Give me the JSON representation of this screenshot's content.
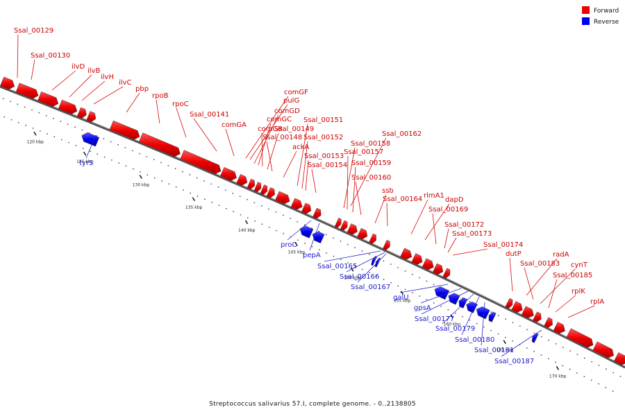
{
  "legend": [
    {
      "label": "Forward",
      "color": "#ee0000"
    },
    {
      "label": "Reverse",
      "color": "#0000ee"
    }
  ],
  "caption": "Streptococcus salivarius 57.I, complete genome. - 0..2138805",
  "ticks": [
    "120 kbp",
    "125 kbp",
    "130 kbp",
    "135 kbp",
    "140 kbp",
    "145 kbp",
    "150 kbp",
    "155 kbp",
    "160 kbp",
    "165 kbp",
    "170 kbp"
  ],
  "forward_labels": [
    "Ssal_00129",
    "Ssal_00130",
    "ilvD",
    "ilvB",
    "ilvH",
    "ilvC",
    "pbp",
    "rpoB",
    "rpoC",
    "Ssal_00141",
    "comGA",
    "comGF",
    "pulG",
    "comGD",
    "comGC",
    "comGB",
    "Ssal_00149",
    "Ssal_00148",
    "ackA",
    "Ssal_00151",
    "Ssal_00152",
    "Ssal_00153",
    "Ssal_00154",
    "Ssal_00162",
    "Ssal_00158",
    "Ssal_00157",
    "Ssal_00159",
    "Ssal_00160",
    "ssb",
    "Ssal_00164",
    "rlmA1",
    "dapD",
    "Ssal_00169",
    "Ssal_00172",
    "Ssal_00173",
    "Ssal_00174",
    "dutP",
    "radA",
    "Ssal_00183",
    "cynT",
    "Ssal_00185",
    "rplK",
    "rplA"
  ],
  "reverse_labels": [
    "tyrS",
    "proC",
    "pepA",
    "Ssal_00165",
    "Ssal_00166",
    "Ssal_00167",
    "galU",
    "gpsA",
    "Ssal_00177",
    "Ssal_00179",
    "Ssal_00180",
    "Ssal_00181",
    "Ssal_00187"
  ]
}
